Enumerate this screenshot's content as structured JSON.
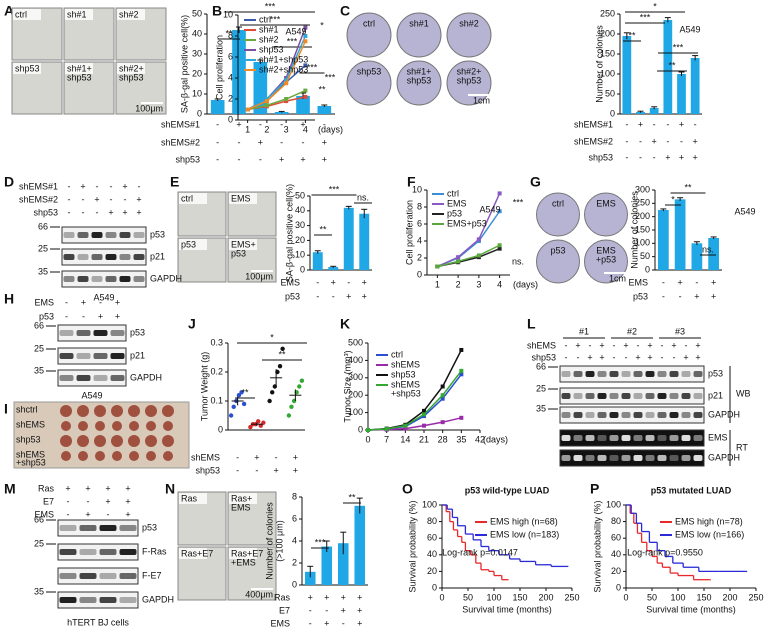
{
  "panel_letters": [
    "A",
    "B",
    "C",
    "D",
    "E",
    "F",
    "G",
    "H",
    "I",
    "J",
    "K",
    "L",
    "M",
    "N",
    "O",
    "P"
  ],
  "images": [
    {
      "labels": [
        "ctrl",
        "sh#1",
        "sh#2",
        "shp53",
        [
          "sh#1+",
          "shp53"
        ],
        [
          "sh#2+",
          "shp53"
        ]
      ],
      "scale": "100μm"
    },
    {
      "labels": [
        "ctrl",
        "sh#1",
        "sh#2",
        "shp53",
        [
          "sh#1+",
          "shp53"
        ],
        [
          "sh#2+",
          "shp53"
        ]
      ],
      "scale": "1cm"
    },
    {
      "labels": [
        "ctrl",
        "EMS",
        "p53",
        [
          "EMS+",
          "p53"
        ]
      ],
      "scale": "100μm"
    },
    {
      "labels": [
        "ctrl",
        "EMS",
        "p53",
        [
          "EMS",
          "+p53"
        ]
      ],
      "scale": "1cm"
    },
    {
      "labels": [
        "shctrl",
        "shEMS",
        "shp53",
        [
          "shEMS",
          "+shp53"
        ]
      ]
    },
    {
      "labels": [
        "Ras",
        [
          "Ras+",
          "EMS"
        ],
        "Ras+E7",
        [
          "Ras+E7",
          "+EMS"
        ]
      ],
      "scale": "400μm"
    }
  ],
  "blots": [
    {
      "conditions": [
        {
          "label": "shEMS#1",
          "marks": [
            "-",
            "+",
            "-",
            "-",
            "+",
            "-"
          ]
        },
        {
          "label": "shEMS#2",
          "marks": [
            "-",
            "-",
            "+",
            "-",
            "-",
            "+"
          ]
        },
        {
          "label": "shp53",
          "marks": [
            "-",
            "-",
            "-",
            "+",
            "+",
            "+"
          ]
        }
      ],
      "bands": [
        "p53",
        "p21",
        "GAPDH"
      ],
      "markers": [
        66,
        25,
        35
      ],
      "caption": "A549"
    },
    {
      "conditions": [
        {
          "label": "EMS",
          "marks": [
            "-",
            "+",
            "-",
            "+"
          ]
        },
        {
          "label": "p53",
          "marks": [
            "-",
            "-",
            "+",
            "+"
          ]
        }
      ],
      "bands": [
        "p53",
        "p21",
        "GAPDH"
      ],
      "markers": [
        66,
        25,
        35
      ],
      "caption": "A549"
    },
    {
      "groups": [
        "#1",
        "#2",
        "#3"
      ],
      "conditions": [
        {
          "label": "shEMS",
          "marks": [
            "-",
            "+",
            "-",
            "+",
            "-",
            "+",
            "-",
            "+",
            "-",
            "+",
            "-",
            "+"
          ]
        },
        {
          "label": "shp53",
          "marks": [
            "-",
            "-",
            "+",
            "+",
            "-",
            "-",
            "+",
            "+",
            "-",
            "-",
            "+",
            "+"
          ]
        }
      ],
      "bands": [
        "p53",
        "p21",
        "GAPDH",
        "EMS",
        "GAPDH"
      ],
      "markers": [
        66,
        25,
        35
      ],
      "sections": [
        "WB",
        "RT"
      ]
    },
    {
      "conditions": [
        {
          "label": "Ras",
          "marks": [
            "+",
            "+",
            "+",
            "+"
          ]
        },
        {
          "label": "E7",
          "marks": [
            "-",
            "-",
            "+",
            "+"
          ]
        },
        {
          "label": "EMS",
          "marks": [
            "-",
            "+",
            "-",
            "+"
          ]
        }
      ],
      "bands": [
        "p53",
        "F-Ras",
        "F-E7",
        "GAPDH"
      ],
      "markers": [
        66,
        25,
        35
      ],
      "caption": "hTERT BJ cells"
    }
  ],
  "chart_data": [
    {
      "type": "bar",
      "ylabel": "SA-β-gal positive cell(%)",
      "color": "#20a8e6",
      "values": [
        7,
        42,
        26,
        1,
        9,
        4
      ],
      "errors": [
        0.5,
        1.5,
        1,
        0.3,
        1.5,
        0.5
      ],
      "ylim": [
        0,
        50
      ],
      "yticks": [
        0,
        10,
        20,
        30,
        40,
        50
      ],
      "conditions": [
        {
          "label": "shEMS#1",
          "marks": [
            "-",
            "+",
            "-",
            "-",
            "+",
            "-"
          ]
        },
        {
          "label": "shEMS#2",
          "marks": [
            "-",
            "-",
            "+",
            "-",
            "-",
            "+"
          ]
        },
        {
          "label": "shp53",
          "marks": [
            "-",
            "-",
            "-",
            "+",
            "+",
            "+"
          ]
        }
      ],
      "annotations": [
        "***",
        "***",
        "**",
        "***",
        "***"
      ]
    },
    {
      "type": "line",
      "ylabel": "Cell proliferation",
      "xlabel": "(days)",
      "x": [
        1,
        2,
        3,
        4
      ],
      "xlim": [
        0.5,
        4.5
      ],
      "xticks": [
        1,
        2,
        3,
        4
      ],
      "ylim": [
        0,
        10
      ],
      "yticks": [
        0,
        2,
        4,
        6,
        8,
        10
      ],
      "series": [
        {
          "name": "ctrl",
          "color": "#3b5ba9",
          "values": [
            1,
            1.8,
            3.6,
            5.2
          ]
        },
        {
          "name": "sh#1",
          "color": "#e04b3c",
          "values": [
            1,
            1.3,
            1.8,
            2.2
          ]
        },
        {
          "name": "sh#2",
          "color": "#6aaa3c",
          "values": [
            1,
            1.4,
            2,
            2.8
          ]
        },
        {
          "name": "shp53",
          "color": "#7a4f9e",
          "values": [
            1,
            2,
            4,
            8.8
          ]
        },
        {
          "name": "sh#1+shp53",
          "color": "#2fa7d8",
          "values": [
            1,
            2,
            3.8,
            8
          ]
        },
        {
          "name": "sh#2+shp53",
          "color": "#f08a24",
          "values": [
            1,
            1.8,
            3.5,
            7.5
          ]
        }
      ],
      "annotations": [
        "A549",
        "*",
        "**",
        "***"
      ]
    },
    {
      "type": "bar",
      "ylabel": "Number of colonies",
      "color": "#20a8e6",
      "values": [
        195,
        5,
        15,
        235,
        100,
        140
      ],
      "errors": [
        8,
        2,
        3,
        6,
        5,
        6
      ],
      "ylim": [
        0,
        250
      ],
      "yticks": [
        0,
        50,
        100,
        150,
        200,
        250
      ],
      "conditions": [
        {
          "label": "shEMS#1",
          "marks": [
            "-",
            "+",
            "-",
            "-",
            "+",
            "-"
          ]
        },
        {
          "label": "shEMS#2",
          "marks": [
            "-",
            "-",
            "+",
            "-",
            "-",
            "+"
          ]
        },
        {
          "label": "shp53",
          "marks": [
            "-",
            "-",
            "-",
            "+",
            "+",
            "+"
          ]
        }
      ],
      "annotations": [
        "A549",
        "*",
        "***",
        "**",
        "***",
        "**"
      ]
    },
    {
      "type": "bar",
      "ylabel": "SA-β-gal positive cell(%)",
      "color": "#20a8e6",
      "values": [
        12,
        2,
        42,
        38
      ],
      "errors": [
        1,
        0.5,
        1,
        3
      ],
      "ylim": [
        0,
        50
      ],
      "yticks": [
        0,
        10,
        20,
        30,
        40,
        50
      ],
      "conditions": [
        {
          "label": "EMS",
          "marks": [
            "-",
            "+",
            "-",
            "+"
          ]
        },
        {
          "label": "p53",
          "marks": [
            "-",
            "-",
            "+",
            "+"
          ]
        }
      ],
      "annotations": [
        "***",
        "**",
        "ns."
      ]
    },
    {
      "type": "line",
      "ylabel": "Cell proliferation",
      "xlabel": "(days)",
      "x": [
        1,
        2,
        3,
        4
      ],
      "xlim": [
        0.5,
        4.5
      ],
      "xticks": [
        1,
        2,
        3,
        4
      ],
      "ylim": [
        0,
        10
      ],
      "yticks": [
        0,
        2,
        4,
        6,
        8,
        10
      ],
      "series": [
        {
          "name": "ctrl",
          "color": "#3b8ed6",
          "values": [
            1,
            2,
            4,
            7.5
          ]
        },
        {
          "name": "EMS",
          "color": "#8a5ac2",
          "values": [
            1,
            2.1,
            4.2,
            9.6
          ]
        },
        {
          "name": "p53",
          "color": "#222222",
          "values": [
            1,
            1.5,
            2.1,
            3.1
          ]
        },
        {
          "name": "EMS+p53",
          "color": "#5aa83c",
          "values": [
            1,
            1.6,
            2.3,
            3.5
          ]
        }
      ],
      "annotations": [
        "A549",
        "***",
        "ns."
      ]
    },
    {
      "type": "bar",
      "ylabel": "Number of  colonies",
      "color": "#20a8e6",
      "values": [
        225,
        265,
        100,
        120
      ],
      "errors": [
        4,
        6,
        6,
        4
      ],
      "ylim": [
        0,
        300
      ],
      "yticks": [
        0,
        50,
        100,
        150,
        200,
        250,
        300
      ],
      "conditions": [
        {
          "label": "EMS",
          "marks": [
            "-",
            "+",
            "-",
            "+"
          ]
        },
        {
          "label": "p53",
          "marks": [
            "-",
            "-",
            "+",
            "+"
          ]
        }
      ],
      "annotations": [
        "A549",
        "*",
        "**",
        "ns."
      ]
    },
    {
      "type": "dot",
      "ylabel": "Tumor Weight (g)",
      "ylim": [
        0,
        0.3
      ],
      "yticks": [
        0,
        0.1,
        0.2,
        0.3
      ],
      "groups": [
        {
          "color": "#2b4fd0",
          "values": [
            0.05,
            0.08,
            0.1,
            0.12,
            0.13,
            0.09
          ]
        },
        {
          "color": "#d42a2a",
          "values": [
            0.01,
            0.02,
            0.02,
            0.03,
            0.015,
            0.025
          ]
        },
        {
          "color": "#111111",
          "values": [
            0.1,
            0.13,
            0.15,
            0.2,
            0.22,
            0.28
          ]
        },
        {
          "color": "#33a833",
          "values": [
            0.05,
            0.08,
            0.1,
            0.13,
            0.15,
            0.17
          ]
        }
      ],
      "means": [
        0.1,
        0.02,
        0.18,
        0.12
      ],
      "errors": [
        0.015,
        0.005,
        0.03,
        0.02
      ],
      "conditions": [
        {
          "label": "shEMS",
          "marks": [
            "-",
            "+",
            "-",
            "+"
          ]
        },
        {
          "label": "shp53",
          "marks": [
            "-",
            "-",
            "+",
            "+"
          ]
        }
      ],
      "annotations": [
        "*",
        "**",
        "**"
      ]
    },
    {
      "type": "line",
      "ylabel": "Tumor Size (mm³)",
      "xlabel": "(days)",
      "x": [
        0,
        7,
        14,
        21,
        28,
        35
      ],
      "xlim": [
        0,
        42
      ],
      "xticks": [
        0,
        7,
        14,
        21,
        28,
        35,
        42
      ],
      "ylim": [
        0,
        500
      ],
      "yticks": [
        0,
        100,
        200,
        300,
        400,
        500
      ],
      "series": [
        {
          "name": "ctrl",
          "color": "#2b4fd0",
          "values": [
            0,
            5,
            20,
            80,
            180,
            320
          ]
        },
        {
          "name": "shEMS",
          "color": "#9b2aa8",
          "values": [
            0,
            2,
            8,
            25,
            45,
            70
          ]
        },
        {
          "name": "shp53",
          "color": "#111111",
          "values": [
            0,
            8,
            30,
            110,
            250,
            460
          ]
        },
        {
          "name": [
            "shEMS",
            "+shp53"
          ],
          "color": "#33a833",
          "values": [
            0,
            6,
            25,
            90,
            200,
            340
          ]
        }
      ]
    },
    {
      "type": "bar",
      "ylabel": [
        "Number of colonies",
        "(>100 μm)"
      ],
      "color": "#20a8e6",
      "values": [
        1.2,
        3.5,
        3.8,
        7.2
      ],
      "errors": [
        0.5,
        0.5,
        1,
        0.7
      ],
      "ylim": [
        0,
        8
      ],
      "yticks": [
        0,
        2,
        4,
        6,
        8
      ],
      "conditions": [
        {
          "label": "Ras",
          "marks": [
            "+",
            "+",
            "+",
            "+"
          ]
        },
        {
          "label": "E7",
          "marks": [
            "-",
            "-",
            "+",
            "+"
          ]
        },
        {
          "label": "EMS",
          "marks": [
            "-",
            "+",
            "-",
            "+"
          ]
        }
      ],
      "annotations": [
        "***",
        "**"
      ]
    },
    {
      "type": "km",
      "title": "p53 wild-type LUAD",
      "ylabel": "Survival probability (%)",
      "xlabel": "Survival time (months)",
      "xlim": [
        0,
        250
      ],
      "xticks": [
        0,
        50,
        100,
        150,
        200,
        250
      ],
      "ylim": [
        0,
        100
      ],
      "yticks": [
        0,
        20,
        40,
        60,
        80,
        100
      ],
      "series": [
        {
          "name": "EMS high (n=68)",
          "color": "#e8292a",
          "x": [
            0,
            8,
            15,
            22,
            30,
            38,
            45,
            55,
            65,
            75,
            90,
            100,
            115,
            125
          ],
          "values": [
            100,
            92,
            80,
            70,
            62,
            55,
            45,
            40,
            30,
            22,
            20,
            15,
            10,
            10
          ]
        },
        {
          "name": "EMS low (n=183)",
          "color": "#2a2ad8",
          "x": [
            0,
            10,
            20,
            30,
            45,
            60,
            75,
            90,
            110,
            130,
            150,
            180,
            210,
            240
          ],
          "values": [
            100,
            95,
            85,
            75,
            65,
            58,
            50,
            45,
            40,
            35,
            32,
            28,
            26,
            26
          ]
        }
      ],
      "annotations": [
        "Log-rank p=0.0147"
      ]
    },
    {
      "type": "km",
      "title": "p53 mutated LUAD",
      "ylabel": "Survival probability (%)",
      "xlabel": "Survival time (months)",
      "xlim": [
        0,
        250
      ],
      "xticks": [
        0,
        50,
        100,
        150,
        200,
        250
      ],
      "ylim": [
        0,
        100
      ],
      "yticks": [
        0,
        20,
        40,
        60,
        80,
        100
      ],
      "series": [
        {
          "name": "EMS high (n=78)",
          "color": "#e8292a",
          "x": [
            0,
            8,
            15,
            22,
            30,
            40,
            50,
            60,
            70,
            85,
            100,
            130,
            160
          ],
          "values": [
            100,
            90,
            78,
            66,
            55,
            45,
            38,
            30,
            25,
            18,
            15,
            10,
            10
          ]
        },
        {
          "name": "EMS low (n=166)",
          "color": "#2a2ad8",
          "x": [
            0,
            10,
            20,
            30,
            45,
            60,
            75,
            90,
            110,
            140,
            180,
            230
          ],
          "values": [
            100,
            90,
            78,
            68,
            55,
            45,
            38,
            30,
            25,
            20,
            20,
            20
          ]
        }
      ],
      "annotations": [
        "Log-rank p=0.9550"
      ]
    }
  ]
}
